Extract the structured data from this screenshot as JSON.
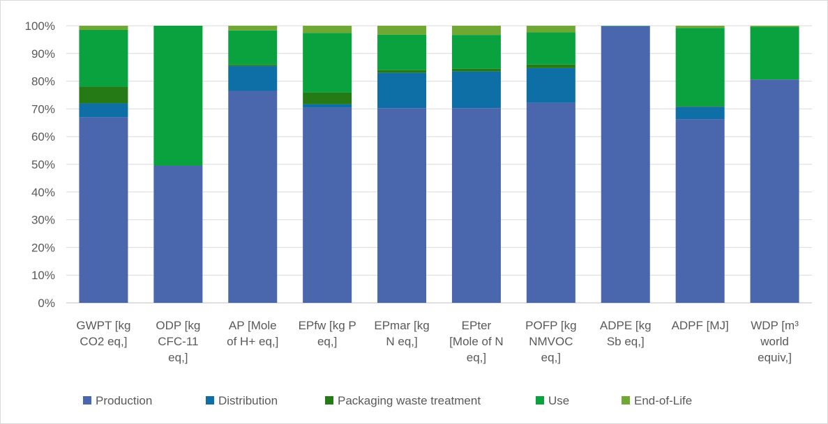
{
  "chart_data": {
    "type": "bar",
    "stacked": true,
    "percent": true,
    "categories": [
      [
        "GWPT [kg",
        "CO2 eq,]"
      ],
      [
        "ODP [kg",
        "CFC-11",
        "eq,]"
      ],
      [
        "AP [Mole",
        "of H+ eq,]"
      ],
      [
        "EPfw [kg P",
        "eq,]"
      ],
      [
        "EPmar [kg",
        "N eq,]"
      ],
      [
        "EPter",
        "[Mole of N",
        "eq,]"
      ],
      [
        "POFP [kg",
        "NMVOC",
        "eq,]"
      ],
      [
        "ADPE [kg",
        "Sb eq,]"
      ],
      [
        "ADPF [MJ]"
      ],
      [
        "WDP [m³",
        "world",
        "equiv,]"
      ]
    ],
    "series": [
      {
        "name": "Production",
        "color": "#4a66ac",
        "values": [
          67,
          49.5,
          76.5,
          70.5,
          70.3,
          70.3,
          72.2,
          99.8,
          66.3,
          80.6
        ]
      },
      {
        "name": "Distribution",
        "color": "#0e6fa6",
        "values": [
          5,
          0,
          9,
          1.2,
          12.7,
          13.2,
          12.5,
          0.1,
          4.5,
          0
        ]
      },
      {
        "name": "Packaging waste treatment",
        "color": "#267a16",
        "values": [
          6,
          0,
          0.5,
          4.2,
          1,
          1,
          1.3,
          0,
          0.2,
          0
        ]
      },
      {
        "name": "Use",
        "color": "#0aa23f",
        "values": [
          20.5,
          50.5,
          12.3,
          21.5,
          12.8,
          12.2,
          11.6,
          0.1,
          28.2,
          19
        ]
      },
      {
        "name": "End-of-Life",
        "color": "#6fa832",
        "values": [
          1.5,
          0,
          1.7,
          2.6,
          3.2,
          3.3,
          2.4,
          0,
          0.8,
          0.4
        ]
      }
    ],
    "yticks": [
      "0%",
      "10%",
      "20%",
      "30%",
      "40%",
      "50%",
      "60%",
      "70%",
      "80%",
      "90%",
      "100%"
    ],
    "ylim": [
      0,
      100
    ],
    "grid": true,
    "legend_position": "bottom",
    "title": "",
    "xlabel": "",
    "ylabel": ""
  }
}
